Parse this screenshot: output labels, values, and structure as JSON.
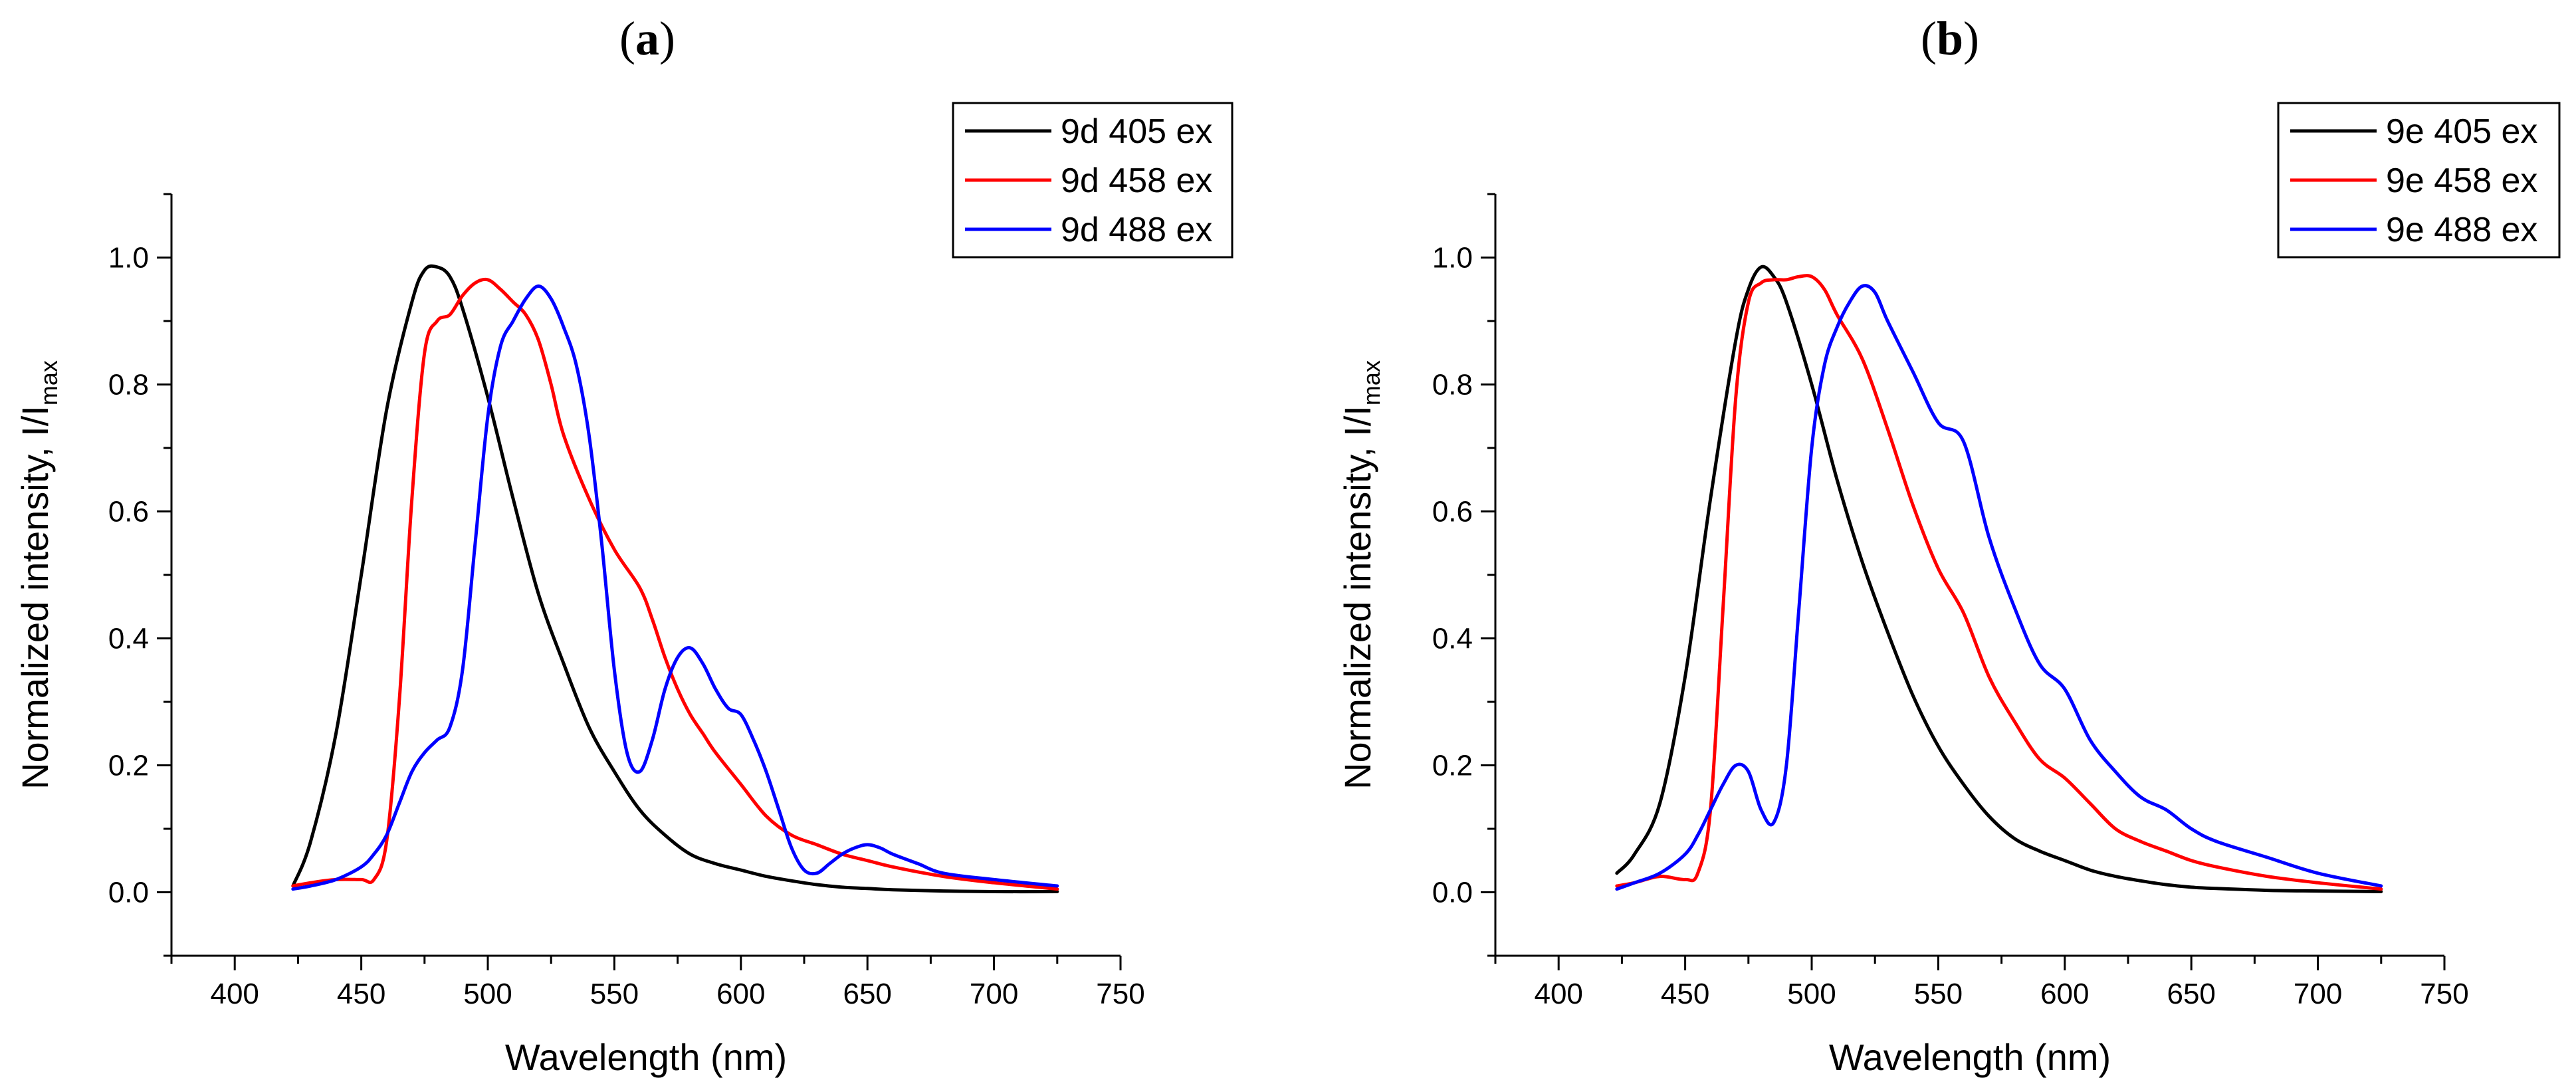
{
  "chart_data": [
    {
      "type": "line",
      "panel_label": "a",
      "xlabel": "Wavelength (nm)",
      "ylabel": {
        "main": "Normalized intensity, I/I",
        "subscript": "max"
      },
      "xlim": [
        375,
        750
      ],
      "ylim": [
        -0.1,
        1.1
      ],
      "xticks": [
        400,
        450,
        500,
        550,
        600,
        650,
        700,
        750
      ],
      "yticks": [
        0.0,
        0.2,
        0.4,
        0.6,
        0.8,
        1.0
      ],
      "xtick_labels": [
        "400",
        "450",
        "500",
        "550",
        "600",
        "650",
        "700",
        "750"
      ],
      "ytick_labels": [
        "0.0",
        "0.2",
        "0.4",
        "0.6",
        "0.8",
        "1.0"
      ],
      "legend_position": "top-right",
      "series": [
        {
          "name": "9d 405 ex",
          "color": "#000000",
          "x": [
            423,
            430,
            440,
            450,
            460,
            470,
            475,
            480,
            485,
            490,
            500,
            510,
            520,
            530,
            540,
            550,
            560,
            570,
            580,
            590,
            600,
            610,
            620,
            630,
            640,
            650,
            660,
            680,
            700,
            725
          ],
          "y": [
            0.01,
            0.08,
            0.25,
            0.5,
            0.76,
            0.93,
            0.98,
            0.985,
            0.97,
            0.92,
            0.78,
            0.62,
            0.47,
            0.36,
            0.26,
            0.19,
            0.13,
            0.09,
            0.06,
            0.045,
            0.035,
            0.025,
            0.018,
            0.012,
            0.008,
            0.006,
            0.004,
            0.002,
            0.001,
            0.001
          ]
        },
        {
          "name": "9d 458 ex",
          "color": "#ff0000",
          "x": [
            423,
            430,
            440,
            450,
            455,
            460,
            465,
            470,
            475,
            480,
            485,
            490,
            495,
            500,
            505,
            510,
            515,
            520,
            525,
            530,
            540,
            550,
            560,
            565,
            570,
            575,
            580,
            585,
            590,
            600,
            610,
            620,
            630,
            640,
            650,
            660,
            680,
            700,
            725
          ],
          "y": [
            0.01,
            0.015,
            0.02,
            0.02,
            0.02,
            0.08,
            0.3,
            0.62,
            0.85,
            0.9,
            0.91,
            0.94,
            0.96,
            0.965,
            0.95,
            0.93,
            0.91,
            0.87,
            0.8,
            0.72,
            0.62,
            0.54,
            0.48,
            0.43,
            0.37,
            0.32,
            0.28,
            0.25,
            0.22,
            0.17,
            0.12,
            0.09,
            0.075,
            0.06,
            0.05,
            0.04,
            0.025,
            0.015,
            0.005
          ]
        },
        {
          "name": "9d 488 ex",
          "color": "#0000ff",
          "x": [
            423,
            430,
            440,
            450,
            455,
            460,
            465,
            470,
            475,
            480,
            485,
            490,
            495,
            500,
            505,
            510,
            515,
            520,
            525,
            530,
            535,
            540,
            545,
            550,
            555,
            560,
            565,
            570,
            575,
            580,
            585,
            590,
            595,
            600,
            605,
            610,
            615,
            620,
            625,
            630,
            635,
            640,
            645,
            650,
            655,
            660,
            670,
            680,
            700,
            725
          ],
          "y": [
            0.005,
            0.01,
            0.02,
            0.04,
            0.06,
            0.09,
            0.14,
            0.19,
            0.22,
            0.24,
            0.26,
            0.35,
            0.55,
            0.75,
            0.86,
            0.9,
            0.935,
            0.955,
            0.935,
            0.89,
            0.83,
            0.72,
            0.55,
            0.35,
            0.22,
            0.19,
            0.24,
            0.32,
            0.37,
            0.385,
            0.36,
            0.32,
            0.29,
            0.28,
            0.24,
            0.19,
            0.13,
            0.07,
            0.035,
            0.03,
            0.045,
            0.06,
            0.07,
            0.075,
            0.07,
            0.06,
            0.045,
            0.03,
            0.02,
            0.01
          ]
        }
      ]
    },
    {
      "type": "line",
      "panel_label": "b",
      "xlabel": "Wavelength (nm)",
      "ylabel": {
        "main": "Normalized intensity, I/I",
        "subscript": "max"
      },
      "xlim": [
        375,
        750
      ],
      "ylim": [
        -0.1,
        1.1
      ],
      "xticks": [
        400,
        450,
        500,
        550,
        600,
        650,
        700,
        750
      ],
      "yticks": [
        0.0,
        0.2,
        0.4,
        0.6,
        0.8,
        1.0
      ],
      "xtick_labels": [
        "400",
        "450",
        "500",
        "550",
        "600",
        "650",
        "700",
        "750"
      ],
      "ytick_labels": [
        "0.0",
        "0.2",
        "0.4",
        "0.6",
        "0.8",
        "1.0"
      ],
      "legend_position": "top-right",
      "series": [
        {
          "name": "9e 405 ex",
          "color": "#000000",
          "x": [
            423,
            430,
            440,
            450,
            460,
            470,
            475,
            480,
            485,
            490,
            500,
            510,
            520,
            530,
            540,
            550,
            560,
            570,
            580,
            590,
            600,
            610,
            620,
            630,
            640,
            650,
            660,
            680,
            700,
            725
          ],
          "y": [
            0.03,
            0.06,
            0.14,
            0.34,
            0.62,
            0.87,
            0.95,
            0.985,
            0.97,
            0.93,
            0.8,
            0.65,
            0.52,
            0.41,
            0.31,
            0.23,
            0.17,
            0.12,
            0.085,
            0.065,
            0.05,
            0.035,
            0.025,
            0.018,
            0.012,
            0.008,
            0.006,
            0.003,
            0.002,
            0.001
          ]
        },
        {
          "name": "9e 458 ex",
          "color": "#ff0000",
          "x": [
            423,
            430,
            440,
            450,
            455,
            460,
            465,
            470,
            475,
            480,
            485,
            490,
            495,
            500,
            505,
            510,
            520,
            530,
            540,
            550,
            560,
            570,
            580,
            590,
            600,
            610,
            620,
            630,
            640,
            650,
            660,
            680,
            700,
            725
          ],
          "y": [
            0.01,
            0.015,
            0.025,
            0.02,
            0.03,
            0.13,
            0.45,
            0.78,
            0.93,
            0.96,
            0.965,
            0.965,
            0.97,
            0.97,
            0.95,
            0.91,
            0.84,
            0.73,
            0.61,
            0.51,
            0.44,
            0.34,
            0.27,
            0.21,
            0.18,
            0.14,
            0.1,
            0.08,
            0.065,
            0.05,
            0.04,
            0.025,
            0.015,
            0.005
          ]
        },
        {
          "name": "9e 488 ex",
          "color": "#0000ff",
          "x": [
            423,
            430,
            440,
            450,
            455,
            460,
            465,
            470,
            475,
            480,
            485,
            490,
            495,
            500,
            505,
            510,
            515,
            520,
            525,
            530,
            540,
            550,
            560,
            570,
            580,
            590,
            600,
            610,
            620,
            630,
            640,
            650,
            660,
            680,
            700,
            725
          ],
          "y": [
            0.005,
            0.015,
            0.03,
            0.06,
            0.09,
            0.13,
            0.17,
            0.2,
            0.19,
            0.13,
            0.11,
            0.2,
            0.45,
            0.7,
            0.83,
            0.89,
            0.93,
            0.955,
            0.945,
            0.9,
            0.82,
            0.74,
            0.71,
            0.56,
            0.45,
            0.36,
            0.32,
            0.24,
            0.19,
            0.15,
            0.13,
            0.1,
            0.08,
            0.055,
            0.03,
            0.01
          ]
        }
      ]
    }
  ]
}
